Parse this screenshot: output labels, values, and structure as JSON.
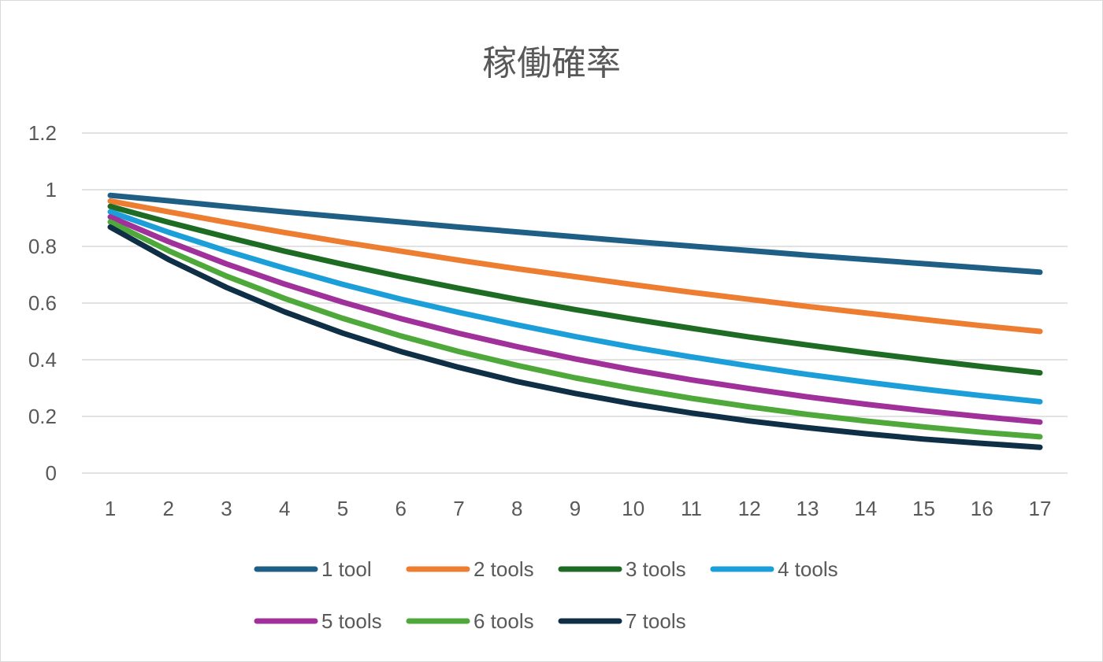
{
  "chart_data": {
    "type": "line",
    "title": "稼働確率",
    "xlabel": "",
    "ylabel": "",
    "ylim": [
      0,
      1.2
    ],
    "yticks": [
      "0",
      "0.2",
      "0.4",
      "0.6",
      "0.8",
      "1",
      "1.2"
    ],
    "categories": [
      "1",
      "2",
      "3",
      "4",
      "5",
      "6",
      "7",
      "8",
      "9",
      "10",
      "11",
      "12",
      "13",
      "14",
      "15",
      "16",
      "17"
    ],
    "grid": true,
    "legend_position": "bottom",
    "series": [
      {
        "name": "1 tool",
        "color": "#1f5f85",
        "values": [
          0.98,
          0.961,
          0.941,
          0.922,
          0.904,
          0.886,
          0.868,
          0.851,
          0.834,
          0.817,
          0.801,
          0.785,
          0.769,
          0.754,
          0.739,
          0.724,
          0.709
        ]
      },
      {
        "name": "2 tools",
        "color": "#ed7d31",
        "values": [
          0.96,
          0.922,
          0.885,
          0.849,
          0.815,
          0.783,
          0.751,
          0.721,
          0.693,
          0.665,
          0.638,
          0.613,
          0.588,
          0.565,
          0.542,
          0.52,
          0.5
        ]
      },
      {
        "name": "3 tools",
        "color": "#1e6b24",
        "values": [
          0.941,
          0.885,
          0.833,
          0.783,
          0.737,
          0.693,
          0.652,
          0.613,
          0.577,
          0.543,
          0.511,
          0.48,
          0.452,
          0.425,
          0.4,
          0.376,
          0.354
        ]
      },
      {
        "name": "4 tools",
        "color": "#1c9fd9",
        "values": [
          0.922,
          0.85,
          0.784,
          0.723,
          0.666,
          0.614,
          0.567,
          0.523,
          0.482,
          0.444,
          0.41,
          0.378,
          0.348,
          0.321,
          0.296,
          0.273,
          0.252
        ]
      },
      {
        "name": "5 tools",
        "color": "#a0309a",
        "values": [
          0.904,
          0.817,
          0.738,
          0.667,
          0.603,
          0.545,
          0.493,
          0.446,
          0.403,
          0.364,
          0.329,
          0.298,
          0.269,
          0.243,
          0.22,
          0.199,
          0.18
        ]
      },
      {
        "name": "6 tools",
        "color": "#4fa83a",
        "values": [
          0.886,
          0.785,
          0.695,
          0.616,
          0.546,
          0.484,
          0.429,
          0.38,
          0.336,
          0.298,
          0.264,
          0.234,
          0.207,
          0.184,
          0.163,
          0.144,
          0.128
        ]
      },
      {
        "name": "7 tools",
        "color": "#0e2f45",
        "values": [
          0.868,
          0.754,
          0.655,
          0.569,
          0.494,
          0.429,
          0.373,
          0.323,
          0.281,
          0.244,
          0.212,
          0.184,
          0.16,
          0.139,
          0.12,
          0.105,
          0.091
        ]
      }
    ]
  }
}
